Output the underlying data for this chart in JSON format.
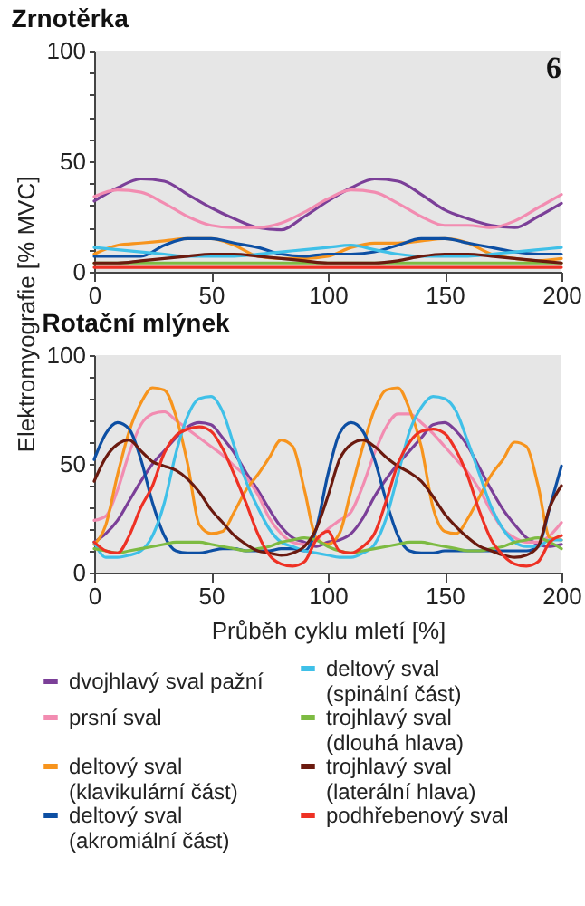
{
  "chart_data": [
    {
      "type": "line",
      "title": "Zrnotěrka",
      "ylabel": "Elektromyografie [% MVC]",
      "annotations": [
        "6"
      ],
      "legend": false,
      "grid": false,
      "marker": "none",
      "line_style": "solid",
      "x": [
        0,
        10,
        20,
        30,
        40,
        50,
        60,
        70,
        80,
        90,
        100,
        110,
        120,
        130,
        140,
        150,
        160,
        170,
        180,
        190,
        200
      ],
      "xlim": [
        0,
        200
      ],
      "xticks": [
        0,
        50,
        100,
        150,
        200
      ],
      "ylim": [
        0,
        100
      ],
      "yticks": [
        0,
        {
          "value": 10,
          "label": null
        },
        {
          "value": 20,
          "label": null
        },
        {
          "value": 30,
          "label": null
        },
        {
          "value": 40,
          "label": null
        },
        50,
        {
          "value": 60,
          "label": null
        },
        {
          "value": 70,
          "label": null
        },
        {
          "value": 80,
          "label": null
        },
        {
          "value": 90,
          "label": null
        },
        100
      ],
      "series": [
        {
          "color": "#7b3f98",
          "values": [
            32,
            38,
            42,
            41,
            35,
            29,
            24,
            20,
            19,
            25,
            32,
            38,
            42,
            41,
            35,
            28,
            24,
            21,
            20,
            25,
            31
          ]
        },
        {
          "color": "#f28cb1",
          "values": [
            34,
            37,
            36,
            31,
            25,
            21,
            20,
            20,
            22,
            27,
            33,
            37,
            36,
            31,
            25,
            21,
            21,
            20,
            23,
            29,
            35
          ]
        },
        {
          "color": "#f7941d",
          "values": [
            8,
            12,
            13,
            14,
            15,
            15,
            12,
            7,
            6,
            6,
            7,
            11,
            13,
            13,
            14,
            15,
            13,
            8,
            6,
            5,
            6
          ]
        },
        {
          "color": "#0d4fa3",
          "values": [
            7,
            7,
            7,
            12,
            15,
            15,
            13,
            11,
            8,
            7,
            8,
            8,
            9,
            12,
            15,
            15,
            13,
            11,
            9,
            8,
            8
          ]
        },
        {
          "color": "#3fc0e8",
          "values": [
            11,
            10,
            9,
            8,
            7,
            7,
            7,
            8,
            9,
            10,
            11,
            12,
            10,
            8,
            7,
            7,
            7,
            8,
            9,
            10,
            11
          ]
        },
        {
          "color": "#7dbb42",
          "values": [
            4,
            4,
            4,
            4,
            4,
            4,
            4,
            4,
            4,
            4,
            4,
            4,
            4,
            4,
            4,
            4,
            4,
            4,
            4,
            4,
            4
          ]
        },
        {
          "color": "#6b1a0f",
          "values": [
            4,
            4,
            5,
            6,
            7,
            8,
            8,
            7,
            6,
            5,
            4,
            4,
            4,
            5,
            7,
            8,
            8,
            7,
            6,
            5,
            4
          ]
        },
        {
          "color": "#ee3124",
          "values": [
            2,
            2,
            2,
            2,
            2,
            2,
            2,
            2,
            2,
            2,
            2,
            2,
            2,
            2,
            2,
            2,
            2,
            2,
            2,
            2,
            2
          ]
        }
      ]
    },
    {
      "type": "line",
      "title": "Rotační mlýnek",
      "xlabel": "Průběh cyklu mletí [%]",
      "legend": "bottom",
      "grid": false,
      "marker": "none",
      "line_style": "solid",
      "x": [
        0,
        5,
        10,
        15,
        20,
        25,
        30,
        35,
        40,
        45,
        50,
        55,
        60,
        65,
        70,
        75,
        80,
        85,
        90,
        95,
        100,
        105,
        110,
        115,
        120,
        125,
        130,
        135,
        140,
        145,
        150,
        155,
        160,
        165,
        170,
        175,
        180,
        185,
        190,
        195,
        200
      ],
      "xlim": [
        0,
        200
      ],
      "xticks": [
        0,
        50,
        100,
        150,
        200
      ],
      "ylim": [
        0,
        100
      ],
      "yticks": [
        0,
        {
          "value": 10,
          "label": null
        },
        {
          "value": 20,
          "label": null
        },
        {
          "value": 30,
          "label": null
        },
        {
          "value": 40,
          "label": null
        },
        50,
        {
          "value": 60,
          "label": null
        },
        {
          "value": 70,
          "label": null
        },
        {
          "value": 80,
          "label": null
        },
        {
          "value": 90,
          "label": null
        },
        100
      ],
      "series": [
        {
          "name": "dvojhlavý sval pažní",
          "color": "#7b3f98",
          "values": [
            14,
            18,
            24,
            33,
            42,
            50,
            56,
            62,
            67,
            69,
            68,
            62,
            55,
            46,
            38,
            29,
            21,
            16,
            14,
            12,
            14,
            15,
            18,
            25,
            35,
            43,
            50,
            56,
            62,
            68,
            69,
            65,
            58,
            48,
            38,
            29,
            22,
            16,
            13,
            12,
            13
          ]
        },
        {
          "name": "prsní sval",
          "color": "#f28cb1",
          "values": [
            24,
            26,
            38,
            55,
            68,
            73,
            74,
            70,
            66,
            62,
            58,
            54,
            49,
            44,
            36,
            25,
            18,
            14,
            13,
            15,
            20,
            24,
            28,
            40,
            55,
            67,
            73,
            73,
            69,
            64,
            58,
            52,
            46,
            38,
            28,
            20,
            16,
            14,
            14,
            17,
            23
          ]
        },
        {
          "name": "deltový sval (klavikulární část)",
          "color": "#f7941d",
          "values": [
            13,
            22,
            45,
            65,
            78,
            85,
            84,
            72,
            50,
            22,
            18,
            19,
            28,
            38,
            45,
            53,
            61,
            58,
            38,
            16,
            13,
            18,
            38,
            58,
            75,
            84,
            85,
            75,
            58,
            30,
            19,
            18,
            25,
            35,
            45,
            52,
            60,
            58,
            40,
            16,
            15
          ]
        },
        {
          "name": "deltový sval (akromiální část)",
          "color": "#0d4fa3",
          "values": [
            52,
            64,
            69,
            66,
            52,
            32,
            17,
            10,
            9,
            9,
            10,
            11,
            11,
            10,
            10,
            10,
            11,
            11,
            10,
            20,
            45,
            64,
            69,
            65,
            52,
            33,
            17,
            10,
            9,
            9,
            10,
            10,
            10,
            10,
            10,
            10,
            10,
            10,
            12,
            30,
            49
          ]
        },
        {
          "name": "deltový sval (spinální část)",
          "color": "#3fc0e8",
          "values": [
            14,
            7,
            7,
            8,
            10,
            17,
            32,
            55,
            72,
            80,
            81,
            74,
            58,
            42,
            30,
            20,
            14,
            12,
            10,
            9,
            8,
            7,
            7,
            9,
            13,
            25,
            45,
            65,
            76,
            81,
            80,
            74,
            60,
            45,
            30,
            20,
            14,
            12,
            12,
            15,
            15
          ]
        },
        {
          "name": "trojhlavý sval (dlouhá hlava)",
          "color": "#7dbb42",
          "values": [
            11,
            10,
            9,
            10,
            11,
            12,
            13,
            14,
            14,
            14,
            13,
            12,
            11,
            10,
            11,
            12,
            14,
            15,
            16,
            15,
            12,
            10,
            9,
            10,
            11,
            12,
            13,
            14,
            14,
            13,
            12,
            11,
            10,
            10,
            11,
            12,
            14,
            15,
            16,
            14,
            11
          ]
        },
        {
          "name": "trojhlavý sval (laterální hlava)",
          "color": "#6b1a0f",
          "values": [
            42,
            53,
            59,
            61,
            56,
            51,
            49,
            47,
            43,
            37,
            29,
            23,
            17,
            13,
            10,
            9,
            8,
            9,
            12,
            20,
            35,
            52,
            59,
            61,
            58,
            53,
            49,
            46,
            42,
            35,
            27,
            21,
            16,
            12,
            10,
            8,
            7,
            8,
            12,
            30,
            40
          ]
        },
        {
          "name": "podhřebenový sval",
          "color": "#ee3124",
          "values": [
            14,
            10,
            9,
            17,
            30,
            40,
            55,
            63,
            66,
            67,
            65,
            57,
            45,
            32,
            18,
            8,
            4,
            3,
            5,
            15,
            19,
            10,
            9,
            12,
            18,
            33,
            50,
            60,
            65,
            66,
            64,
            56,
            44,
            28,
            15,
            8,
            4,
            3,
            5,
            14,
            17
          ]
        }
      ]
    }
  ]
}
